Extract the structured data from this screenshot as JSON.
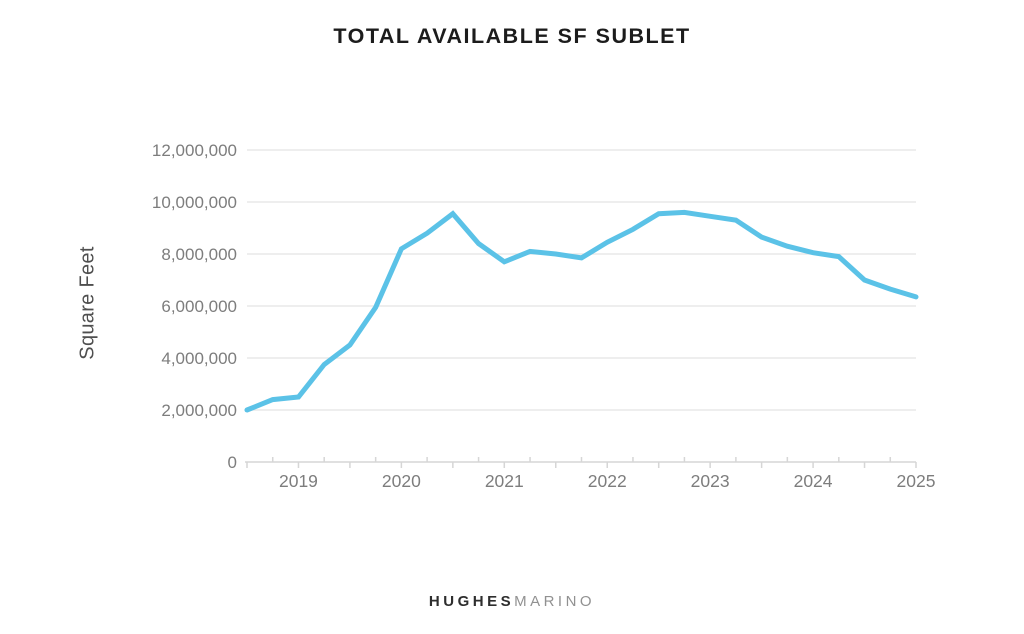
{
  "footer": {
    "logo_primary": "HUGHES",
    "logo_secondary": "MARINO"
  },
  "colors": {
    "title": "#1c1c1c",
    "y_axis_title": "#4f4f4f",
    "logo_primary": "#2e2e2e",
    "logo_secondary": "#919191"
  },
  "chart_data": {
    "type": "line",
    "title": "TOTAL AVAILABLE SF SUBLET",
    "xlabel": "",
    "ylabel": "Square Feet",
    "legend": "none",
    "grid": "horizontal",
    "line_color": "#5bc2e7",
    "grid_color": "#e4e4e4",
    "axis_color": "#d6d6d6",
    "tick_label_color": "#7d7d7d",
    "xlim": [
      2018.5,
      2025
    ],
    "ylim": [
      0,
      12000000
    ],
    "ytick_values": [
      0,
      2000000,
      4000000,
      6000000,
      8000000,
      10000000,
      12000000
    ],
    "ytick_labels": [
      "0",
      "2,000,000",
      "4,000,000",
      "6,000,000",
      "8,000,000",
      "10,000,000",
      "12,000,000"
    ],
    "xtick_values": [
      2019,
      2020,
      2021,
      2022,
      2023,
      2024,
      2025
    ],
    "xtick_labels": [
      "2019",
      "2020",
      "2021",
      "2022",
      "2023",
      "2024",
      "2025"
    ],
    "minor_xtick_step": 0.25,
    "x": [
      2018.5,
      2018.75,
      2019.0,
      2019.25,
      2019.5,
      2019.75,
      2020.0,
      2020.25,
      2020.5,
      2020.75,
      2021.0,
      2021.25,
      2021.5,
      2021.75,
      2022.0,
      2022.25,
      2022.5,
      2022.75,
      2023.0,
      2023.25,
      2023.5,
      2023.75,
      2024.0,
      2024.25,
      2024.5,
      2024.75,
      2025.0
    ],
    "values": [
      2000000,
      2400000,
      2500000,
      3750000,
      4500000,
      5950000,
      8200000,
      8800000,
      9550000,
      8400000,
      7700000,
      8100000,
      8000000,
      7850000,
      8450000,
      8950000,
      9550000,
      9600000,
      9450000,
      9300000,
      8650000,
      8300000,
      8050000,
      7900000,
      7000000,
      6650000,
      6350000
    ]
  }
}
